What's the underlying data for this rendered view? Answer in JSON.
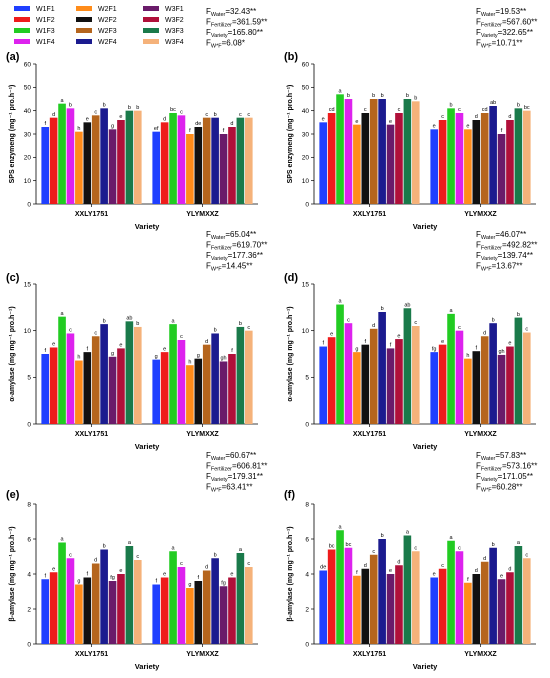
{
  "legend": [
    {
      "name": "W1F1",
      "color": "#1f3fff"
    },
    {
      "name": "W1F2",
      "color": "#ee1c1c"
    },
    {
      "name": "W1F3",
      "color": "#22cc22"
    },
    {
      "name": "W1F4",
      "color": "#dd22ee"
    },
    {
      "name": "W2F1",
      "color": "#ff8c1a"
    },
    {
      "name": "W2F2",
      "color": "#111111"
    },
    {
      "name": "W2F3",
      "color": "#b5651d"
    },
    {
      "name": "W2F4",
      "color": "#1b1b8f"
    },
    {
      "name": "W3F1",
      "color": "#6a1b6a"
    },
    {
      "name": "W3F2",
      "color": "#b0103a"
    },
    {
      "name": "W3F3",
      "color": "#1a7a4a"
    },
    {
      "name": "W3F4",
      "color": "#f5b27a"
    }
  ],
  "chart_data": [
    {
      "type": "bar",
      "panel": "(a)",
      "ylabel": "SPS enzymeng (mg⁻¹ pro.h⁻¹)",
      "xlabel": "Variety",
      "ylim": [
        0,
        60
      ],
      "yticks": [
        0,
        10,
        20,
        30,
        40,
        50,
        60
      ],
      "categories": [
        "XXLY1751",
        "YLYMXXZ"
      ],
      "anova": [
        {
          "sub": "Water",
          "value": "=32.43**"
        },
        {
          "sub": "Fertilizer",
          "value": "=361.59**"
        },
        {
          "sub": "Variety",
          "value": "=165.80**"
        },
        {
          "sub": "W*F",
          "value": "=6.08*"
        }
      ],
      "series": [
        {
          "name": "W1F1",
          "values": [
            33,
            31
          ],
          "letters": [
            "f",
            "ef"
          ]
        },
        {
          "name": "W1F2",
          "values": [
            37,
            35
          ],
          "letters": [
            "d",
            "d"
          ]
        },
        {
          "name": "W1F3",
          "values": [
            43,
            39
          ],
          "letters": [
            "a",
            "bc"
          ]
        },
        {
          "name": "W1F4",
          "values": [
            41,
            38
          ],
          "letters": [
            "b",
            "c"
          ]
        },
        {
          "name": "W2F1",
          "values": [
            31,
            30
          ],
          "letters": [
            "h",
            "f"
          ]
        },
        {
          "name": "W2F2",
          "values": [
            35,
            33
          ],
          "letters": [
            "e",
            "de"
          ]
        },
        {
          "name": "W2F3",
          "values": [
            38,
            37
          ],
          "letters": [
            "c",
            "c"
          ]
        },
        {
          "name": "W2F4",
          "values": [
            41,
            37
          ],
          "letters": [
            "b",
            "b"
          ]
        },
        {
          "name": "W3F1",
          "values": [
            32,
            30
          ],
          "letters": [
            "g",
            "f"
          ]
        },
        {
          "name": "W3F2",
          "values": [
            36,
            33
          ],
          "letters": [
            "e",
            "d"
          ]
        },
        {
          "name": "W3F3",
          "values": [
            40,
            37
          ],
          "letters": [
            "b",
            "c"
          ]
        },
        {
          "name": "W3F4",
          "values": [
            40,
            37
          ],
          "letters": [
            "b",
            "c"
          ]
        }
      ]
    },
    {
      "type": "bar",
      "panel": "(b)",
      "ylabel": "SPS enzymeng (mg⁻¹ pro.h⁻¹)",
      "xlabel": "Variety",
      "ylim": [
        0,
        60
      ],
      "yticks": [
        0,
        10,
        20,
        30,
        40,
        50,
        60
      ],
      "categories": [
        "XXLY1751",
        "YLYMXXZ"
      ],
      "anova": [
        {
          "sub": "Water",
          "value": "=19.53**"
        },
        {
          "sub": "Fertilizer",
          "value": "=567.60**"
        },
        {
          "sub": "Variety",
          "value": "=322.65**"
        },
        {
          "sub": "W*F",
          "value": "=10.71**"
        }
      ],
      "series": [
        {
          "name": "W1F1",
          "values": [
            35,
            32
          ],
          "letters": [
            "e",
            "e"
          ]
        },
        {
          "name": "W1F2",
          "values": [
            39,
            36
          ],
          "letters": [
            "cd",
            "c"
          ]
        },
        {
          "name": "W1F3",
          "values": [
            47,
            41
          ],
          "letters": [
            "a",
            "b"
          ]
        },
        {
          "name": "W1F4",
          "values": [
            45,
            39
          ],
          "letters": [
            "b",
            "c"
          ]
        },
        {
          "name": "W2F1",
          "values": [
            34,
            32
          ],
          "letters": [
            "e",
            "e"
          ]
        },
        {
          "name": "W2F2",
          "values": [
            39,
            36
          ],
          "letters": [
            "c",
            "d"
          ]
        },
        {
          "name": "W2F3",
          "values": [
            45,
            39
          ],
          "letters": [
            "b",
            "cd"
          ]
        },
        {
          "name": "W2F4",
          "values": [
            45,
            42
          ],
          "letters": [
            "b",
            "ab"
          ]
        },
        {
          "name": "W3F1",
          "values": [
            34,
            30
          ],
          "letters": [
            "e",
            "f"
          ]
        },
        {
          "name": "W3F2",
          "values": [
            39,
            36
          ],
          "letters": [
            "c",
            "d"
          ]
        },
        {
          "name": "W3F3",
          "values": [
            45,
            41
          ],
          "letters": [
            "b",
            "b"
          ]
        },
        {
          "name": "W3F4",
          "values": [
            44,
            40
          ],
          "letters": [
            "b",
            "bc"
          ]
        }
      ]
    },
    {
      "type": "bar",
      "panel": "(c)",
      "ylabel": "α-amylase (mg mg⁻¹ pro.h⁻¹)",
      "xlabel": "Variety",
      "ylim": [
        0,
        15
      ],
      "yticks": [
        0,
        5,
        10,
        15
      ],
      "categories": [
        "XXLY1751",
        "YLYMXXZ"
      ],
      "anova": [
        {
          "sub": "Water",
          "value": "=65.04**"
        },
        {
          "sub": "Fertilizer",
          "value": "=619.70**"
        },
        {
          "sub": "Variety",
          "value": "=177.36**"
        },
        {
          "sub": "W*F",
          "value": "=14.45**"
        }
      ],
      "series": [
        {
          "name": "W1F1",
          "values": [
            7.5,
            6.9
          ],
          "letters": [
            "f",
            "g"
          ]
        },
        {
          "name": "W1F2",
          "values": [
            8.2,
            7.7
          ],
          "letters": [
            "e",
            "e"
          ]
        },
        {
          "name": "W1F3",
          "values": [
            11.5,
            10.7
          ],
          "letters": [
            "a",
            "a"
          ]
        },
        {
          "name": "W1F4",
          "values": [
            9.7,
            9.0
          ],
          "letters": [
            "c",
            "c"
          ]
        },
        {
          "name": "W2F1",
          "values": [
            6.8,
            6.3
          ],
          "letters": [
            "h",
            "h"
          ]
        },
        {
          "name": "W2F2",
          "values": [
            7.7,
            7.0
          ],
          "letters": [
            "f",
            "g"
          ]
        },
        {
          "name": "W2F3",
          "values": [
            9.4,
            8.5
          ],
          "letters": [
            "c",
            "d"
          ]
        },
        {
          "name": "W2F4",
          "values": [
            10.7,
            9.7
          ],
          "letters": [
            "b",
            "b"
          ]
        },
        {
          "name": "W3F1",
          "values": [
            7.2,
            6.7
          ],
          "letters": [
            "g",
            "gh"
          ]
        },
        {
          "name": "W3F2",
          "values": [
            8.1,
            7.5
          ],
          "letters": [
            "e",
            "f"
          ]
        },
        {
          "name": "W3F3",
          "values": [
            11.0,
            10.4
          ],
          "letters": [
            "ab",
            "b"
          ]
        },
        {
          "name": "W3F4",
          "values": [
            10.4,
            10.0
          ],
          "letters": [
            "b",
            "c"
          ]
        }
      ]
    },
    {
      "type": "bar",
      "panel": "(d)",
      "ylabel": "α-amylase (mg mg⁻¹ pro.h⁻¹)",
      "xlabel": "Variety",
      "ylim": [
        0,
        15
      ],
      "yticks": [
        0,
        5,
        10,
        15
      ],
      "categories": [
        "XXLY1751",
        "YLYMXXZ"
      ],
      "anova": [
        {
          "sub": "Water",
          "value": "=46.07**"
        },
        {
          "sub": "Fertilizer",
          "value": "=492.82**"
        },
        {
          "sub": "Variety",
          "value": "=139.74**"
        },
        {
          "sub": "W*F",
          "value": "=13.67**"
        }
      ],
      "series": [
        {
          "name": "W1F1",
          "values": [
            8.3,
            7.7
          ],
          "letters": [
            "f",
            "fg"
          ]
        },
        {
          "name": "W1F2",
          "values": [
            9.3,
            8.5
          ],
          "letters": [
            "e",
            "e"
          ]
        },
        {
          "name": "W1F3",
          "values": [
            12.8,
            11.8
          ],
          "letters": [
            "a",
            "a"
          ]
        },
        {
          "name": "W1F4",
          "values": [
            10.8,
            10.0
          ],
          "letters": [
            "c",
            "c"
          ]
        },
        {
          "name": "W2F1",
          "values": [
            7.7,
            7.0
          ],
          "letters": [
            "g",
            "h"
          ]
        },
        {
          "name": "W2F2",
          "values": [
            8.5,
            7.8
          ],
          "letters": [
            "f",
            "f"
          ]
        },
        {
          "name": "W2F3",
          "values": [
            10.2,
            9.4
          ],
          "letters": [
            "d",
            "d"
          ]
        },
        {
          "name": "W2F4",
          "values": [
            12.0,
            10.8
          ],
          "letters": [
            "b",
            "b"
          ]
        },
        {
          "name": "W3F1",
          "values": [
            8.1,
            7.4
          ],
          "letters": [
            "f",
            "gh"
          ]
        },
        {
          "name": "W3F2",
          "values": [
            9.1,
            8.3
          ],
          "letters": [
            "e",
            "e"
          ]
        },
        {
          "name": "W3F3",
          "values": [
            12.4,
            11.4
          ],
          "letters": [
            "ab",
            "b"
          ]
        },
        {
          "name": "W3F4",
          "values": [
            10.5,
            9.8
          ],
          "letters": [
            "c",
            "c"
          ]
        }
      ]
    },
    {
      "type": "bar",
      "panel": "(e)",
      "ylabel": "β-amylase (mg mg⁻¹ pro.h⁻¹)",
      "xlabel": "Variety",
      "ylim": [
        0,
        8
      ],
      "yticks": [
        0,
        2,
        4,
        6,
        8
      ],
      "categories": [
        "XXLY1751",
        "YLYMXXZ"
      ],
      "anova": [
        {
          "sub": "Water",
          "value": "=60.67**"
        },
        {
          "sub": "Fertilizer",
          "value": "=606.81**"
        },
        {
          "sub": "Variety",
          "value": "=179.31**"
        },
        {
          "sub": "W*F",
          "value": "=63.41**"
        }
      ],
      "series": [
        {
          "name": "W1F1",
          "values": [
            3.7,
            3.4
          ],
          "letters": [
            "f",
            "f"
          ]
        },
        {
          "name": "W1F2",
          "values": [
            4.1,
            3.8
          ],
          "letters": [
            "e",
            "e"
          ]
        },
        {
          "name": "W1F3",
          "values": [
            5.8,
            5.3
          ],
          "letters": [
            "a",
            "a"
          ]
        },
        {
          "name": "W1F4",
          "values": [
            4.9,
            4.4
          ],
          "letters": [
            "c",
            "c"
          ]
        },
        {
          "name": "W2F1",
          "values": [
            3.4,
            3.2
          ],
          "letters": [
            "g",
            "g"
          ]
        },
        {
          "name": "W2F2",
          "values": [
            3.8,
            3.6
          ],
          "letters": [
            "f",
            "f"
          ]
        },
        {
          "name": "W2F3",
          "values": [
            4.6,
            4.2
          ],
          "letters": [
            "d",
            "d"
          ]
        },
        {
          "name": "W2F4",
          "values": [
            5.4,
            4.9
          ],
          "letters": [
            "b",
            "b"
          ]
        },
        {
          "name": "W3F1",
          "values": [
            3.6,
            3.3
          ],
          "letters": [
            "fg",
            "fg"
          ]
        },
        {
          "name": "W3F2",
          "values": [
            4.0,
            3.8
          ],
          "letters": [
            "e",
            "e"
          ]
        },
        {
          "name": "W3F3",
          "values": [
            5.6,
            5.2
          ],
          "letters": [
            "a",
            "a"
          ]
        },
        {
          "name": "W3F4",
          "values": [
            4.8,
            4.4
          ],
          "letters": [
            "c",
            "c"
          ]
        }
      ]
    },
    {
      "type": "bar",
      "panel": "(f)",
      "ylabel": "β-amylase (mg mg⁻¹ pro.h⁻¹)",
      "xlabel": "Variety",
      "ylim": [
        0,
        8
      ],
      "yticks": [
        0,
        2,
        4,
        6,
        8
      ],
      "categories": [
        "XXLY1751",
        "YLYMXXZ"
      ],
      "anova": [
        {
          "sub": "Water",
          "value": "=57.83**"
        },
        {
          "sub": "Fertilizer",
          "value": "=573.16**"
        },
        {
          "sub": "Variety",
          "value": "=171.05**"
        },
        {
          "sub": "W*F",
          "value": "=60.28**"
        }
      ],
      "series": [
        {
          "name": "W1F1",
          "values": [
            4.2,
            3.8
          ],
          "letters": [
            "de",
            "e"
          ]
        },
        {
          "name": "W1F2",
          "values": [
            5.4,
            4.3
          ],
          "letters": [
            "bc",
            "c"
          ]
        },
        {
          "name": "W1F3",
          "values": [
            6.5,
            5.9
          ],
          "letters": [
            "a",
            "a"
          ]
        },
        {
          "name": "W1F4",
          "values": [
            5.5,
            5.3
          ],
          "letters": [
            "bc",
            "c"
          ]
        },
        {
          "name": "W2F1",
          "values": [
            3.9,
            3.5
          ],
          "letters": [
            "f",
            "f"
          ]
        },
        {
          "name": "W2F2",
          "values": [
            4.3,
            4.0
          ],
          "letters": [
            "d",
            "d"
          ]
        },
        {
          "name": "W2F3",
          "values": [
            5.1,
            4.7
          ],
          "letters": [
            "c",
            "d"
          ]
        },
        {
          "name": "W2F4",
          "values": [
            6.0,
            5.5
          ],
          "letters": [
            "b",
            "b"
          ]
        },
        {
          "name": "W3F1",
          "values": [
            4.0,
            3.7
          ],
          "letters": [
            "e",
            "e"
          ]
        },
        {
          "name": "W3F2",
          "values": [
            4.5,
            4.1
          ],
          "letters": [
            "d",
            "d"
          ]
        },
        {
          "name": "W3F3",
          "values": [
            6.2,
            5.6
          ],
          "letters": [
            "a",
            "a"
          ]
        },
        {
          "name": "W3F4",
          "values": [
            5.3,
            4.9
          ],
          "letters": [
            "c",
            "c"
          ]
        }
      ]
    }
  ]
}
